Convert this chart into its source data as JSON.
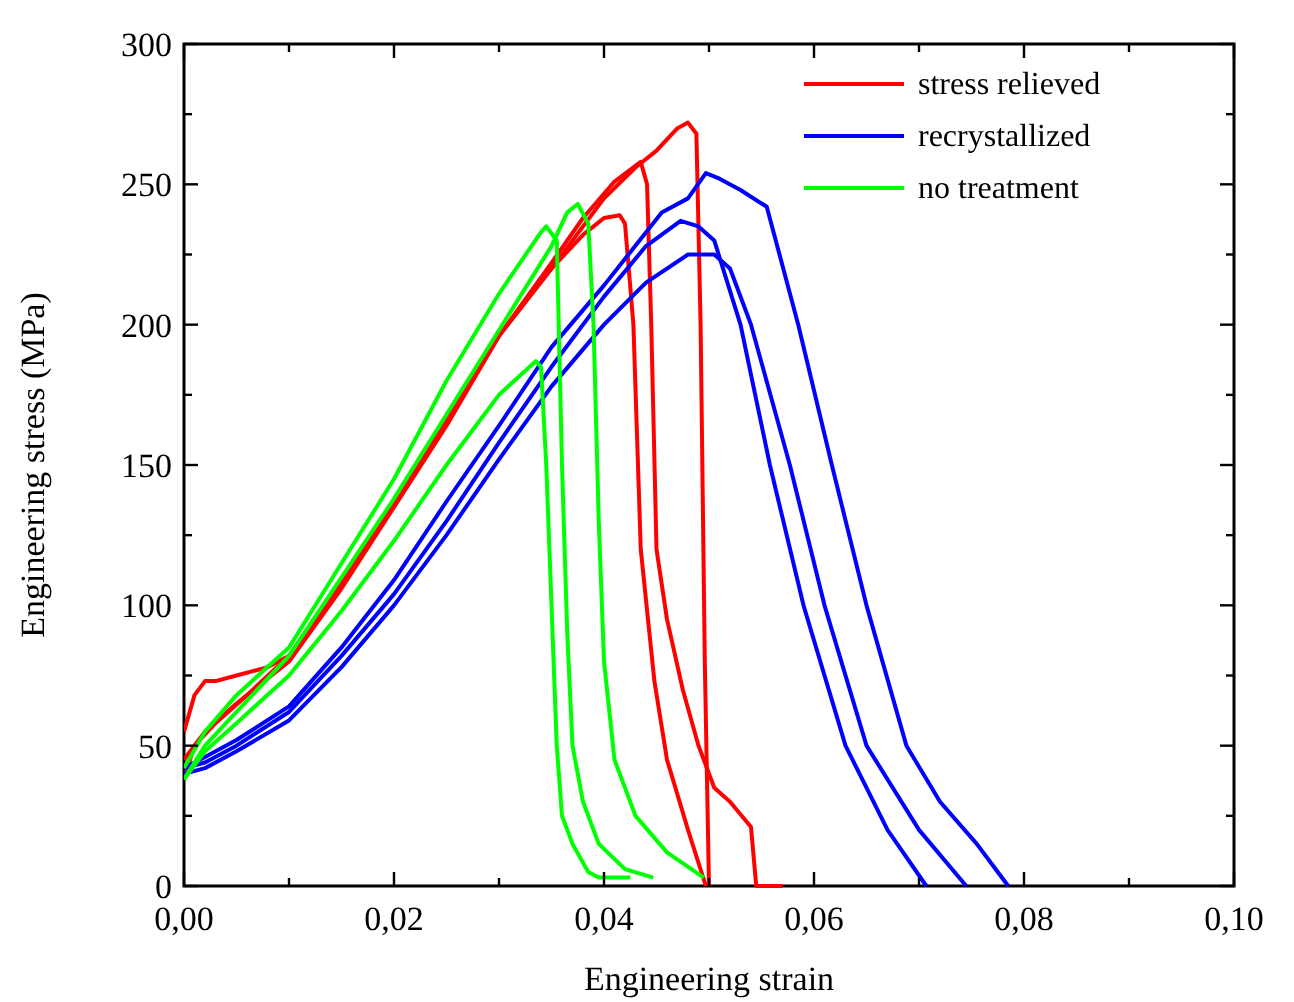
{
  "chart_data": {
    "type": "line",
    "xlabel": "Engineering strain",
    "ylabel": "Engineering stress (MPa)",
    "xlim": [
      0,
      0.1
    ],
    "ylim": [
      0,
      300
    ],
    "xticks": [
      {
        "value": 0,
        "label": "0,00"
      },
      {
        "value": 0.01,
        "label": null
      },
      {
        "value": 0.02,
        "label": "0,02"
      },
      {
        "value": 0.03,
        "label": null
      },
      {
        "value": 0.04,
        "label": "0,04"
      },
      {
        "value": 0.05,
        "label": null
      },
      {
        "value": 0.06,
        "label": "0,06"
      },
      {
        "value": 0.07,
        "label": null
      },
      {
        "value": 0.08,
        "label": "0,08"
      },
      {
        "value": 0.09,
        "label": null
      },
      {
        "value": 0.1,
        "label": "0,10"
      }
    ],
    "yticks": [
      0,
      {
        "value": 25,
        "label": null
      },
      50,
      {
        "value": 75,
        "label": null
      },
      100,
      {
        "value": 125,
        "label": null
      },
      150,
      {
        "value": 175,
        "label": null
      },
      200,
      {
        "value": 225,
        "label": null
      },
      250,
      {
        "value": 275,
        "label": null
      },
      300
    ],
    "grid": false,
    "legend": "top right",
    "marker": "none",
    "line_style": "solid",
    "series": [
      {
        "name": "stress relieved",
        "color": "#ff0000",
        "x": [
          0,
          0.001,
          0.002,
          0.003,
          0.005,
          0.008,
          0.01,
          0.015,
          0.02,
          0.025,
          0.03,
          0.035,
          0.038,
          0.04,
          0.0415,
          0.042,
          0.0428,
          0.0435,
          0.0448,
          0.046,
          0.048,
          0.0497
        ],
        "values": [
          55,
          68,
          73,
          73,
          75,
          78,
          82,
          108,
          136,
          165,
          196,
          220,
          232,
          238,
          239,
          236,
          200,
          120,
          73,
          45,
          20,
          0
        ]
      },
      {
        "color": "#ff0000",
        "x": [
          0,
          0.001,
          0.003,
          0.006,
          0.01,
          0.015,
          0.02,
          0.025,
          0.03,
          0.035,
          0.038,
          0.041,
          0.0435,
          0.0441,
          0.0445,
          0.045,
          0.046,
          0.0475,
          0.049,
          0.0505,
          0.052,
          0.054,
          0.0545,
          0.057
        ],
        "values": [
          38,
          50,
          58,
          68,
          82,
          108,
          137,
          166,
          196,
          222,
          238,
          251,
          258,
          250,
          200,
          120,
          95,
          70,
          50,
          35,
          30,
          21,
          0,
          0
        ]
      },
      {
        "color": "#ff0000",
        "x": [
          0,
          0.002,
          0.005,
          0.01,
          0.015,
          0.02,
          0.025,
          0.03,
          0.035,
          0.04,
          0.043,
          0.045,
          0.047,
          0.048,
          0.0488,
          0.0492,
          0.0496,
          0.05
        ],
        "values": [
          45,
          55,
          65,
          80,
          106,
          135,
          164,
          196,
          220,
          245,
          256,
          262,
          270,
          272,
          268,
          200,
          80,
          0
        ]
      },
      {
        "name": "recrystallized",
        "color": "#0000ff",
        "x": [
          0,
          0.002,
          0.005,
          0.01,
          0.015,
          0.02,
          0.025,
          0.03,
          0.035,
          0.04,
          0.0455,
          0.048,
          0.0497,
          0.051,
          0.053,
          0.0555,
          0.0585,
          0.0617,
          0.065,
          0.0688,
          0.072,
          0.0755,
          0.0775,
          0.0785
        ],
        "values": [
          42,
          46,
          52,
          64,
          85,
          109,
          137,
          164,
          192,
          214,
          240,
          245,
          254,
          252,
          248,
          242,
          200,
          150,
          100,
          50,
          30,
          15,
          5,
          0
        ]
      },
      {
        "color": "#0000ff",
        "x": [
          0,
          0.002,
          0.005,
          0.01,
          0.015,
          0.02,
          0.025,
          0.03,
          0.035,
          0.04,
          0.044,
          0.0473,
          0.049,
          0.0505,
          0.053,
          0.0558,
          0.059,
          0.063,
          0.067,
          0.0707
        ],
        "values": [
          42,
          44,
          50,
          62,
          82,
          104,
          130,
          158,
          185,
          210,
          228,
          237,
          235,
          230,
          200,
          150,
          100,
          50,
          20,
          0
        ]
      },
      {
        "color": "#0000ff",
        "x": [
          0,
          0.002,
          0.005,
          0.01,
          0.015,
          0.02,
          0.025,
          0.03,
          0.035,
          0.04,
          0.044,
          0.048,
          0.0505,
          0.052,
          0.054,
          0.0577,
          0.061,
          0.065,
          0.07,
          0.0745
        ],
        "values": [
          40,
          42,
          48,
          59,
          78,
          100,
          125,
          152,
          178,
          200,
          215,
          225,
          225,
          220,
          200,
          150,
          100,
          50,
          20,
          0
        ]
      },
      {
        "name": "no treatment",
        "color": "#00ff00",
        "x": [
          0,
          0.002,
          0.005,
          0.01,
          0.015,
          0.02,
          0.025,
          0.03,
          0.034,
          0.0345,
          0.0355,
          0.036,
          0.0365,
          0.037,
          0.038,
          0.0395,
          0.042,
          0.0447
        ],
        "values": [
          42,
          55,
          68,
          85,
          115,
          145,
          180,
          211,
          233,
          235,
          230,
          150,
          90,
          50,
          30,
          15,
          6,
          3
        ]
      },
      {
        "color": "#00ff00",
        "x": [
          0,
          0.002,
          0.005,
          0.01,
          0.015,
          0.02,
          0.025,
          0.03,
          0.035,
          0.0365,
          0.0375,
          0.0385,
          0.039,
          0.0395,
          0.04,
          0.041,
          0.043,
          0.046,
          0.0495
        ],
        "values": [
          38,
          50,
          62,
          82,
          110,
          138,
          168,
          198,
          228,
          240,
          243,
          236,
          200,
          130,
          80,
          45,
          25,
          12,
          3
        ]
      },
      {
        "color": "#00ff00",
        "x": [
          0,
          0.002,
          0.005,
          0.01,
          0.015,
          0.02,
          0.025,
          0.03,
          0.0335,
          0.034,
          0.0345,
          0.035,
          0.0355,
          0.036,
          0.037,
          0.0385,
          0.0395,
          0.0425
        ],
        "values": [
          38,
          48,
          58,
          75,
          98,
          123,
          150,
          175,
          187,
          185,
          150,
          100,
          50,
          25,
          15,
          5,
          3,
          3
        ]
      }
    ]
  }
}
